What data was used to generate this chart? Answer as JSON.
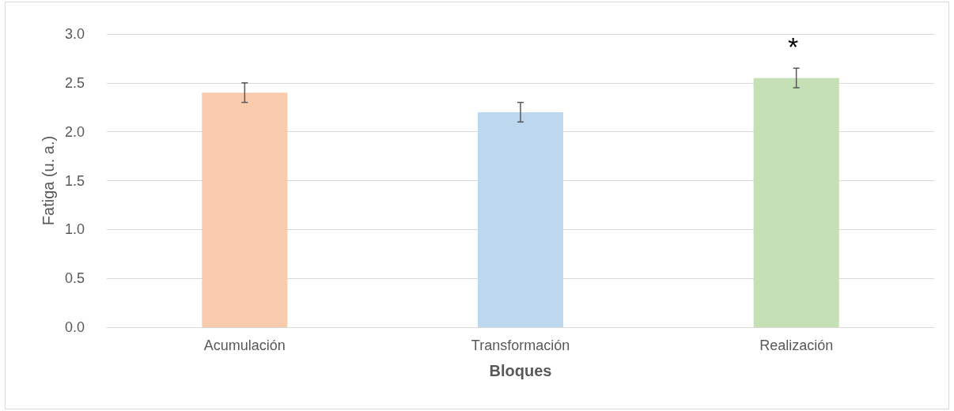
{
  "chart_data": {
    "type": "bar",
    "xlabel": "Bloques",
    "ylabel": "Fatiga (u. a.)",
    "categories": [
      "Acumulación",
      "Transformación",
      "Realización"
    ],
    "values": [
      2.4,
      2.2,
      2.55
    ],
    "colors": [
      "#f8cbad",
      "#bdd7ee",
      "#c5e0b4"
    ],
    "errors": [
      0.1,
      0.1,
      0.1
    ],
    "ylim": [
      0,
      3
    ],
    "yticks": [
      {
        "value": 0,
        "label": "0.0"
      },
      0.5,
      {
        "value": 1,
        "label": "1.0"
      },
      1.5,
      {
        "value": 2,
        "label": "2.0"
      },
      2.5,
      {
        "value": 3,
        "label": "3.0"
      }
    ],
    "grid": "y",
    "annotations": [
      "*"
    ]
  }
}
